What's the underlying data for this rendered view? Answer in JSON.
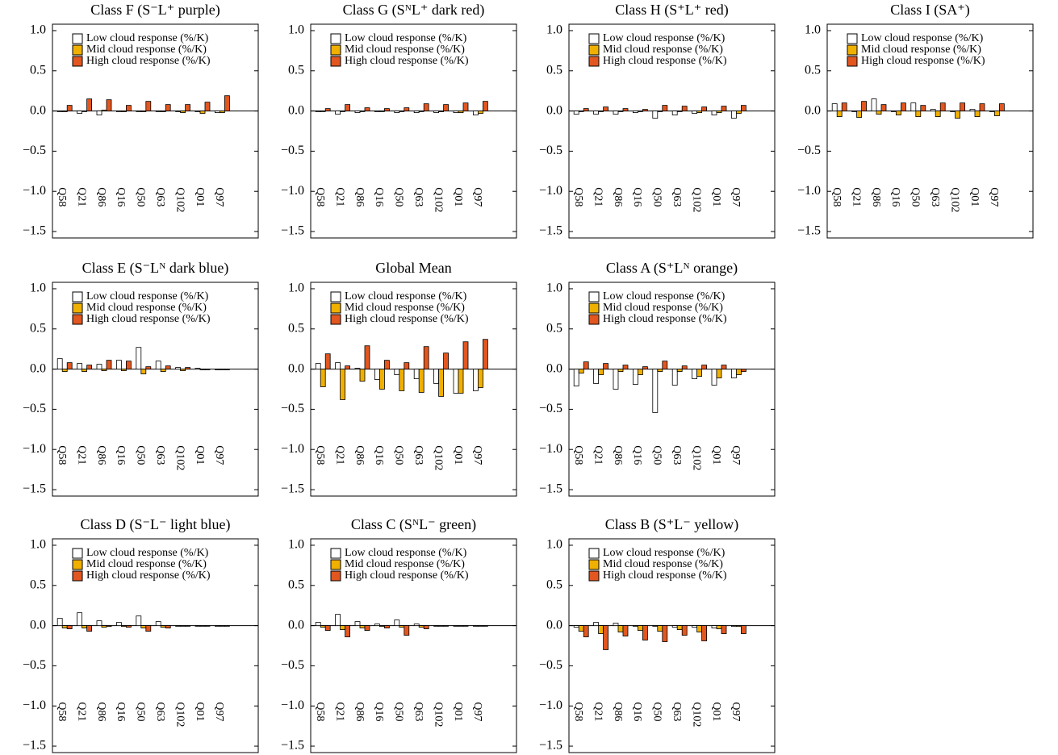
{
  "chart_data": [
    {
      "type": "bar",
      "title": "Class F (S⁻L⁺ purple)",
      "categories": [
        "Q58",
        "Q21",
        "Q86",
        "Q16",
        "Q50",
        "Q63",
        "Q102",
        "Q01",
        "Q97"
      ],
      "series": [
        {
          "name": "Low cloud response (%/K)",
          "color": "#ffffff",
          "values": [
            -0.01,
            -0.03,
            -0.05,
            -0.01,
            0.0,
            0.0,
            0.0,
            -0.01,
            -0.02
          ]
        },
        {
          "name": "Mid cloud response (%/K)",
          "color": "#f0b000",
          "values": [
            -0.01,
            0.0,
            0.01,
            -0.01,
            -0.01,
            -0.01,
            -0.02,
            -0.03,
            -0.02
          ]
        },
        {
          "name": "High cloud response (%/K)",
          "color": "#e2561f",
          "values": [
            0.07,
            0.15,
            0.14,
            0.07,
            0.12,
            0.08,
            0.08,
            0.11,
            0.19
          ]
        }
      ],
      "ylim": [
        -1.58,
        1.08
      ],
      "yticks": [
        {
          "value": 1.0,
          "label": "1.0"
        },
        {
          "value": 0.5,
          "label": "0.5"
        },
        {
          "value": 0.0,
          "label": "0.0"
        },
        {
          "value": -0.5,
          "label": "−0.5"
        },
        {
          "value": -1.0,
          "label": "−1.0"
        },
        {
          "value": -1.5,
          "label": "−1.5"
        }
      ]
    },
    {
      "type": "bar",
      "title": "Class G (SᴺL⁺ dark red)",
      "categories": [
        "Q58",
        "Q21",
        "Q86",
        "Q16",
        "Q50",
        "Q63",
        "Q102",
        "Q01",
        "Q97"
      ],
      "series": [
        {
          "name": "Low cloud response (%/K)",
          "color": "#ffffff",
          "values": [
            -0.01,
            -0.04,
            -0.02,
            -0.01,
            -0.02,
            -0.02,
            -0.02,
            -0.02,
            -0.05
          ]
        },
        {
          "name": "Mid cloud response (%/K)",
          "color": "#f0b000",
          "values": [
            0.0,
            0.0,
            0.0,
            0.0,
            0.0,
            0.0,
            -0.01,
            -0.02,
            -0.03
          ]
        },
        {
          "name": "High cloud response (%/K)",
          "color": "#e2561f",
          "values": [
            0.03,
            0.08,
            0.04,
            0.03,
            0.04,
            0.09,
            0.08,
            0.1,
            0.12
          ]
        }
      ],
      "ylim": [
        -1.58,
        1.08
      ],
      "yticks": [
        {
          "value": 1.0,
          "label": "1.0"
        },
        {
          "value": 0.5,
          "label": "0.5"
        },
        {
          "value": 0.0,
          "label": "0.0"
        },
        {
          "value": -0.5,
          "label": "−0.5"
        },
        {
          "value": -1.0,
          "label": "−1.0"
        },
        {
          "value": -1.5,
          "label": "−1.5"
        }
      ]
    },
    {
      "type": "bar",
      "title": "Class H (S⁺L⁺ red)",
      "categories": [
        "Q58",
        "Q21",
        "Q86",
        "Q16",
        "Q50",
        "Q63",
        "Q102",
        "Q01",
        "Q97"
      ],
      "series": [
        {
          "name": "Low cloud response (%/K)",
          "color": "#ffffff",
          "values": [
            -0.04,
            -0.04,
            -0.04,
            -0.02,
            -0.09,
            -0.05,
            -0.03,
            -0.05,
            -0.09
          ]
        },
        {
          "name": "Mid cloud response (%/K)",
          "color": "#f0b000",
          "values": [
            0.0,
            0.0,
            0.0,
            0.0,
            0.0,
            0.0,
            -0.02,
            -0.02,
            -0.03
          ]
        },
        {
          "name": "High cloud response (%/K)",
          "color": "#e2561f",
          "values": [
            0.03,
            0.05,
            0.03,
            0.02,
            0.07,
            0.06,
            0.05,
            0.06,
            0.07
          ]
        }
      ],
      "ylim": [
        -1.58,
        1.08
      ],
      "yticks": [
        {
          "value": 1.0,
          "label": "1.0"
        },
        {
          "value": 0.5,
          "label": "0.5"
        },
        {
          "value": 0.0,
          "label": "0.0"
        },
        {
          "value": -0.5,
          "label": "−0.5"
        },
        {
          "value": -1.0,
          "label": "−1.0"
        },
        {
          "value": -1.5,
          "label": "−1.5"
        }
      ]
    },
    {
      "type": "bar",
      "title": "Class I (SA⁺)",
      "categories": [
        "Q58",
        "Q21",
        "Q86",
        "Q16",
        "Q50",
        "Q63",
        "Q102",
        "Q01",
        "Q97"
      ],
      "series": [
        {
          "name": "Low cloud response (%/K)",
          "color": "#ffffff",
          "values": [
            0.09,
            0.0,
            0.15,
            0.0,
            0.1,
            0.02,
            0.0,
            0.02,
            0.0
          ]
        },
        {
          "name": "Mid cloud response (%/K)",
          "color": "#f0b000",
          "values": [
            -0.07,
            -0.08,
            -0.04,
            -0.05,
            -0.07,
            -0.07,
            -0.09,
            -0.07,
            -0.06
          ]
        },
        {
          "name": "High cloud response (%/K)",
          "color": "#e2561f",
          "values": [
            0.1,
            0.12,
            0.08,
            0.1,
            0.07,
            0.1,
            0.1,
            0.09,
            0.09
          ]
        }
      ],
      "ylim": [
        -1.58,
        1.08
      ],
      "yticks": [
        {
          "value": 1.0,
          "label": "1.0"
        },
        {
          "value": 0.5,
          "label": "0.5"
        },
        {
          "value": 0.0,
          "label": "0.0"
        },
        {
          "value": -0.5,
          "label": "−0.5"
        },
        {
          "value": -1.0,
          "label": "−1.0"
        },
        {
          "value": -1.5,
          "label": "−1.5"
        }
      ]
    },
    {
      "type": "bar",
      "title": "Class E (S⁻Lᴺ dark blue)",
      "categories": [
        "Q58",
        "Q21",
        "Q86",
        "Q16",
        "Q50",
        "Q63",
        "Q102",
        "Q01",
        "Q97"
      ],
      "series": [
        {
          "name": "Low cloud response (%/K)",
          "color": "#ffffff",
          "values": [
            0.13,
            0.07,
            0.06,
            0.11,
            0.27,
            0.1,
            0.02,
            0.01,
            0.0
          ]
        },
        {
          "name": "Mid cloud response (%/K)",
          "color": "#f0b000",
          "values": [
            -0.03,
            -0.03,
            -0.02,
            -0.02,
            -0.06,
            -0.03,
            -0.02,
            0.0,
            0.0
          ]
        },
        {
          "name": "High cloud response (%/K)",
          "color": "#e2561f",
          "values": [
            0.08,
            0.05,
            0.11,
            0.1,
            0.03,
            0.04,
            0.02,
            0.0,
            0.0
          ]
        }
      ],
      "ylim": [
        -1.58,
        1.08
      ],
      "yticks": [
        {
          "value": 1.0,
          "label": "1.0"
        },
        {
          "value": 0.5,
          "label": "0.5"
        },
        {
          "value": 0.0,
          "label": "0.0"
        },
        {
          "value": -0.5,
          "label": "−0.5"
        },
        {
          "value": -1.0,
          "label": "−1.0"
        },
        {
          "value": -1.5,
          "label": "−1.5"
        }
      ]
    },
    {
      "type": "bar",
      "title": "Global Mean",
      "categories": [
        "Q58",
        "Q21",
        "Q86",
        "Q16",
        "Q50",
        "Q63",
        "Q102",
        "Q01",
        "Q97"
      ],
      "series": [
        {
          "name": "Low cloud response (%/K)",
          "color": "#ffffff",
          "values": [
            0.07,
            0.08,
            0.01,
            -0.13,
            -0.07,
            -0.12,
            -0.18,
            -0.3,
            -0.27
          ]
        },
        {
          "name": "Mid cloud response (%/K)",
          "color": "#f0b000",
          "values": [
            -0.22,
            -0.38,
            -0.15,
            -0.25,
            -0.27,
            -0.29,
            -0.34,
            -0.3,
            -0.23
          ]
        },
        {
          "name": "High cloud response (%/K)",
          "color": "#e2561f",
          "values": [
            0.19,
            0.04,
            0.29,
            0.11,
            0.08,
            0.28,
            0.2,
            0.34,
            0.37
          ]
        }
      ],
      "ylim": [
        -1.58,
        1.08
      ],
      "yticks": [
        {
          "value": 1.0,
          "label": "1.0"
        },
        {
          "value": 0.5,
          "label": "0.5"
        },
        {
          "value": 0.0,
          "label": "0.0"
        },
        {
          "value": -0.5,
          "label": "−0.5"
        },
        {
          "value": -1.0,
          "label": "−1.0"
        },
        {
          "value": -1.5,
          "label": "−1.5"
        }
      ]
    },
    {
      "type": "bar",
      "title": "Class A (S⁺Lᴺ orange)",
      "categories": [
        "Q58",
        "Q21",
        "Q86",
        "Q16",
        "Q50",
        "Q63",
        "Q102",
        "Q01",
        "Q97"
      ],
      "series": [
        {
          "name": "Low cloud response (%/K)",
          "color": "#ffffff",
          "values": [
            -0.21,
            -0.18,
            -0.25,
            -0.19,
            -0.54,
            -0.2,
            -0.12,
            -0.2,
            -0.11
          ]
        },
        {
          "name": "Mid cloud response (%/K)",
          "color": "#f0b000",
          "values": [
            -0.05,
            -0.07,
            -0.03,
            -0.07,
            -0.03,
            -0.03,
            -0.09,
            -0.11,
            -0.07
          ]
        },
        {
          "name": "High cloud response (%/K)",
          "color": "#e2561f",
          "values": [
            0.09,
            0.07,
            0.05,
            0.03,
            0.1,
            0.04,
            0.05,
            0.05,
            -0.03
          ]
        }
      ],
      "ylim": [
        -1.58,
        1.08
      ],
      "yticks": [
        {
          "value": 1.0,
          "label": "1.0"
        },
        {
          "value": 0.5,
          "label": "0.5"
        },
        {
          "value": 0.0,
          "label": "0.0"
        },
        {
          "value": -0.5,
          "label": "−0.5"
        },
        {
          "value": -1.0,
          "label": "−1.0"
        },
        {
          "value": -1.5,
          "label": "−1.5"
        }
      ]
    },
    {
      "type": "bar",
      "title": "Class D (S⁻L⁻  light blue)",
      "categories": [
        "Q58",
        "Q21",
        "Q86",
        "Q16",
        "Q50",
        "Q63",
        "Q102",
        "Q01",
        "Q97"
      ],
      "series": [
        {
          "name": "Low cloud response (%/K)",
          "color": "#ffffff",
          "values": [
            0.09,
            0.16,
            0.06,
            0.04,
            0.12,
            0.05,
            0.0,
            0.0,
            0.0
          ]
        },
        {
          "name": "Mid cloud response (%/K)",
          "color": "#f0b000",
          "values": [
            -0.03,
            -0.03,
            -0.02,
            -0.01,
            -0.03,
            -0.02,
            0.0,
            0.0,
            0.0
          ]
        },
        {
          "name": "High cloud response (%/K)",
          "color": "#e2561f",
          "values": [
            -0.04,
            -0.07,
            -0.01,
            -0.02,
            -0.07,
            -0.03,
            0.0,
            0.0,
            0.0
          ]
        }
      ],
      "ylim": [
        -1.58,
        1.08
      ],
      "yticks": [
        {
          "value": 1.0,
          "label": "1.0"
        },
        {
          "value": 0.5,
          "label": "0.5"
        },
        {
          "value": 0.0,
          "label": "0.0"
        },
        {
          "value": -0.5,
          "label": "−0.5"
        },
        {
          "value": -1.0,
          "label": "−1.0"
        },
        {
          "value": -1.5,
          "label": "−1.5"
        }
      ]
    },
    {
      "type": "bar",
      "title": "Class C (SᴺL⁻  green)",
      "categories": [
        "Q58",
        "Q21",
        "Q86",
        "Q16",
        "Q50",
        "Q63",
        "Q102",
        "Q01",
        "Q97"
      ],
      "series": [
        {
          "name": "Low cloud response (%/K)",
          "color": "#ffffff",
          "values": [
            0.04,
            0.14,
            0.05,
            0.02,
            0.07,
            0.02,
            0.0,
            0.0,
            0.0
          ]
        },
        {
          "name": "Mid cloud response (%/K)",
          "color": "#f0b000",
          "values": [
            -0.02,
            -0.05,
            -0.03,
            -0.01,
            -0.02,
            -0.02,
            0.0,
            0.0,
            0.0
          ]
        },
        {
          "name": "High cloud response (%/K)",
          "color": "#e2561f",
          "values": [
            -0.06,
            -0.14,
            -0.06,
            -0.03,
            -0.12,
            -0.04,
            0.0,
            0.0,
            0.0
          ]
        }
      ],
      "ylim": [
        -1.58,
        1.08
      ],
      "yticks": [
        {
          "value": 1.0,
          "label": "1.0"
        },
        {
          "value": 0.5,
          "label": "0.5"
        },
        {
          "value": 0.0,
          "label": "0.0"
        },
        {
          "value": -0.5,
          "label": "−0.5"
        },
        {
          "value": -1.0,
          "label": "−1.0"
        },
        {
          "value": -1.5,
          "label": "−1.5"
        }
      ]
    },
    {
      "type": "bar",
      "title": "Class B (S⁺L⁻  yellow)",
      "categories": [
        "Q58",
        "Q21",
        "Q86",
        "Q16",
        "Q50",
        "Q63",
        "Q102",
        "Q01",
        "Q97"
      ],
      "series": [
        {
          "name": "Low cloud response (%/K)",
          "color": "#ffffff",
          "values": [
            -0.02,
            0.04,
            0.03,
            0.0,
            0.0,
            -0.02,
            -0.02,
            -0.03,
            -0.01
          ]
        },
        {
          "name": "Mid cloud response (%/K)",
          "color": "#f0b000",
          "values": [
            -0.07,
            -0.1,
            -0.08,
            -0.06,
            -0.07,
            -0.05,
            -0.08,
            -0.04,
            -0.01
          ]
        },
        {
          "name": "High cloud response (%/K)",
          "color": "#e2561f",
          "values": [
            -0.14,
            -0.3,
            -0.13,
            -0.18,
            -0.2,
            -0.12,
            -0.19,
            -0.1,
            -0.1
          ]
        }
      ],
      "ylim": [
        -1.58,
        1.08
      ],
      "yticks": [
        {
          "value": 1.0,
          "label": "1.0"
        },
        {
          "value": 0.5,
          "label": "0.5"
        },
        {
          "value": 0.0,
          "label": "0.0"
        },
        {
          "value": -0.5,
          "label": "−0.5"
        },
        {
          "value": -1.0,
          "label": "−1.0"
        },
        {
          "value": -1.5,
          "label": "−1.5"
        }
      ]
    }
  ]
}
